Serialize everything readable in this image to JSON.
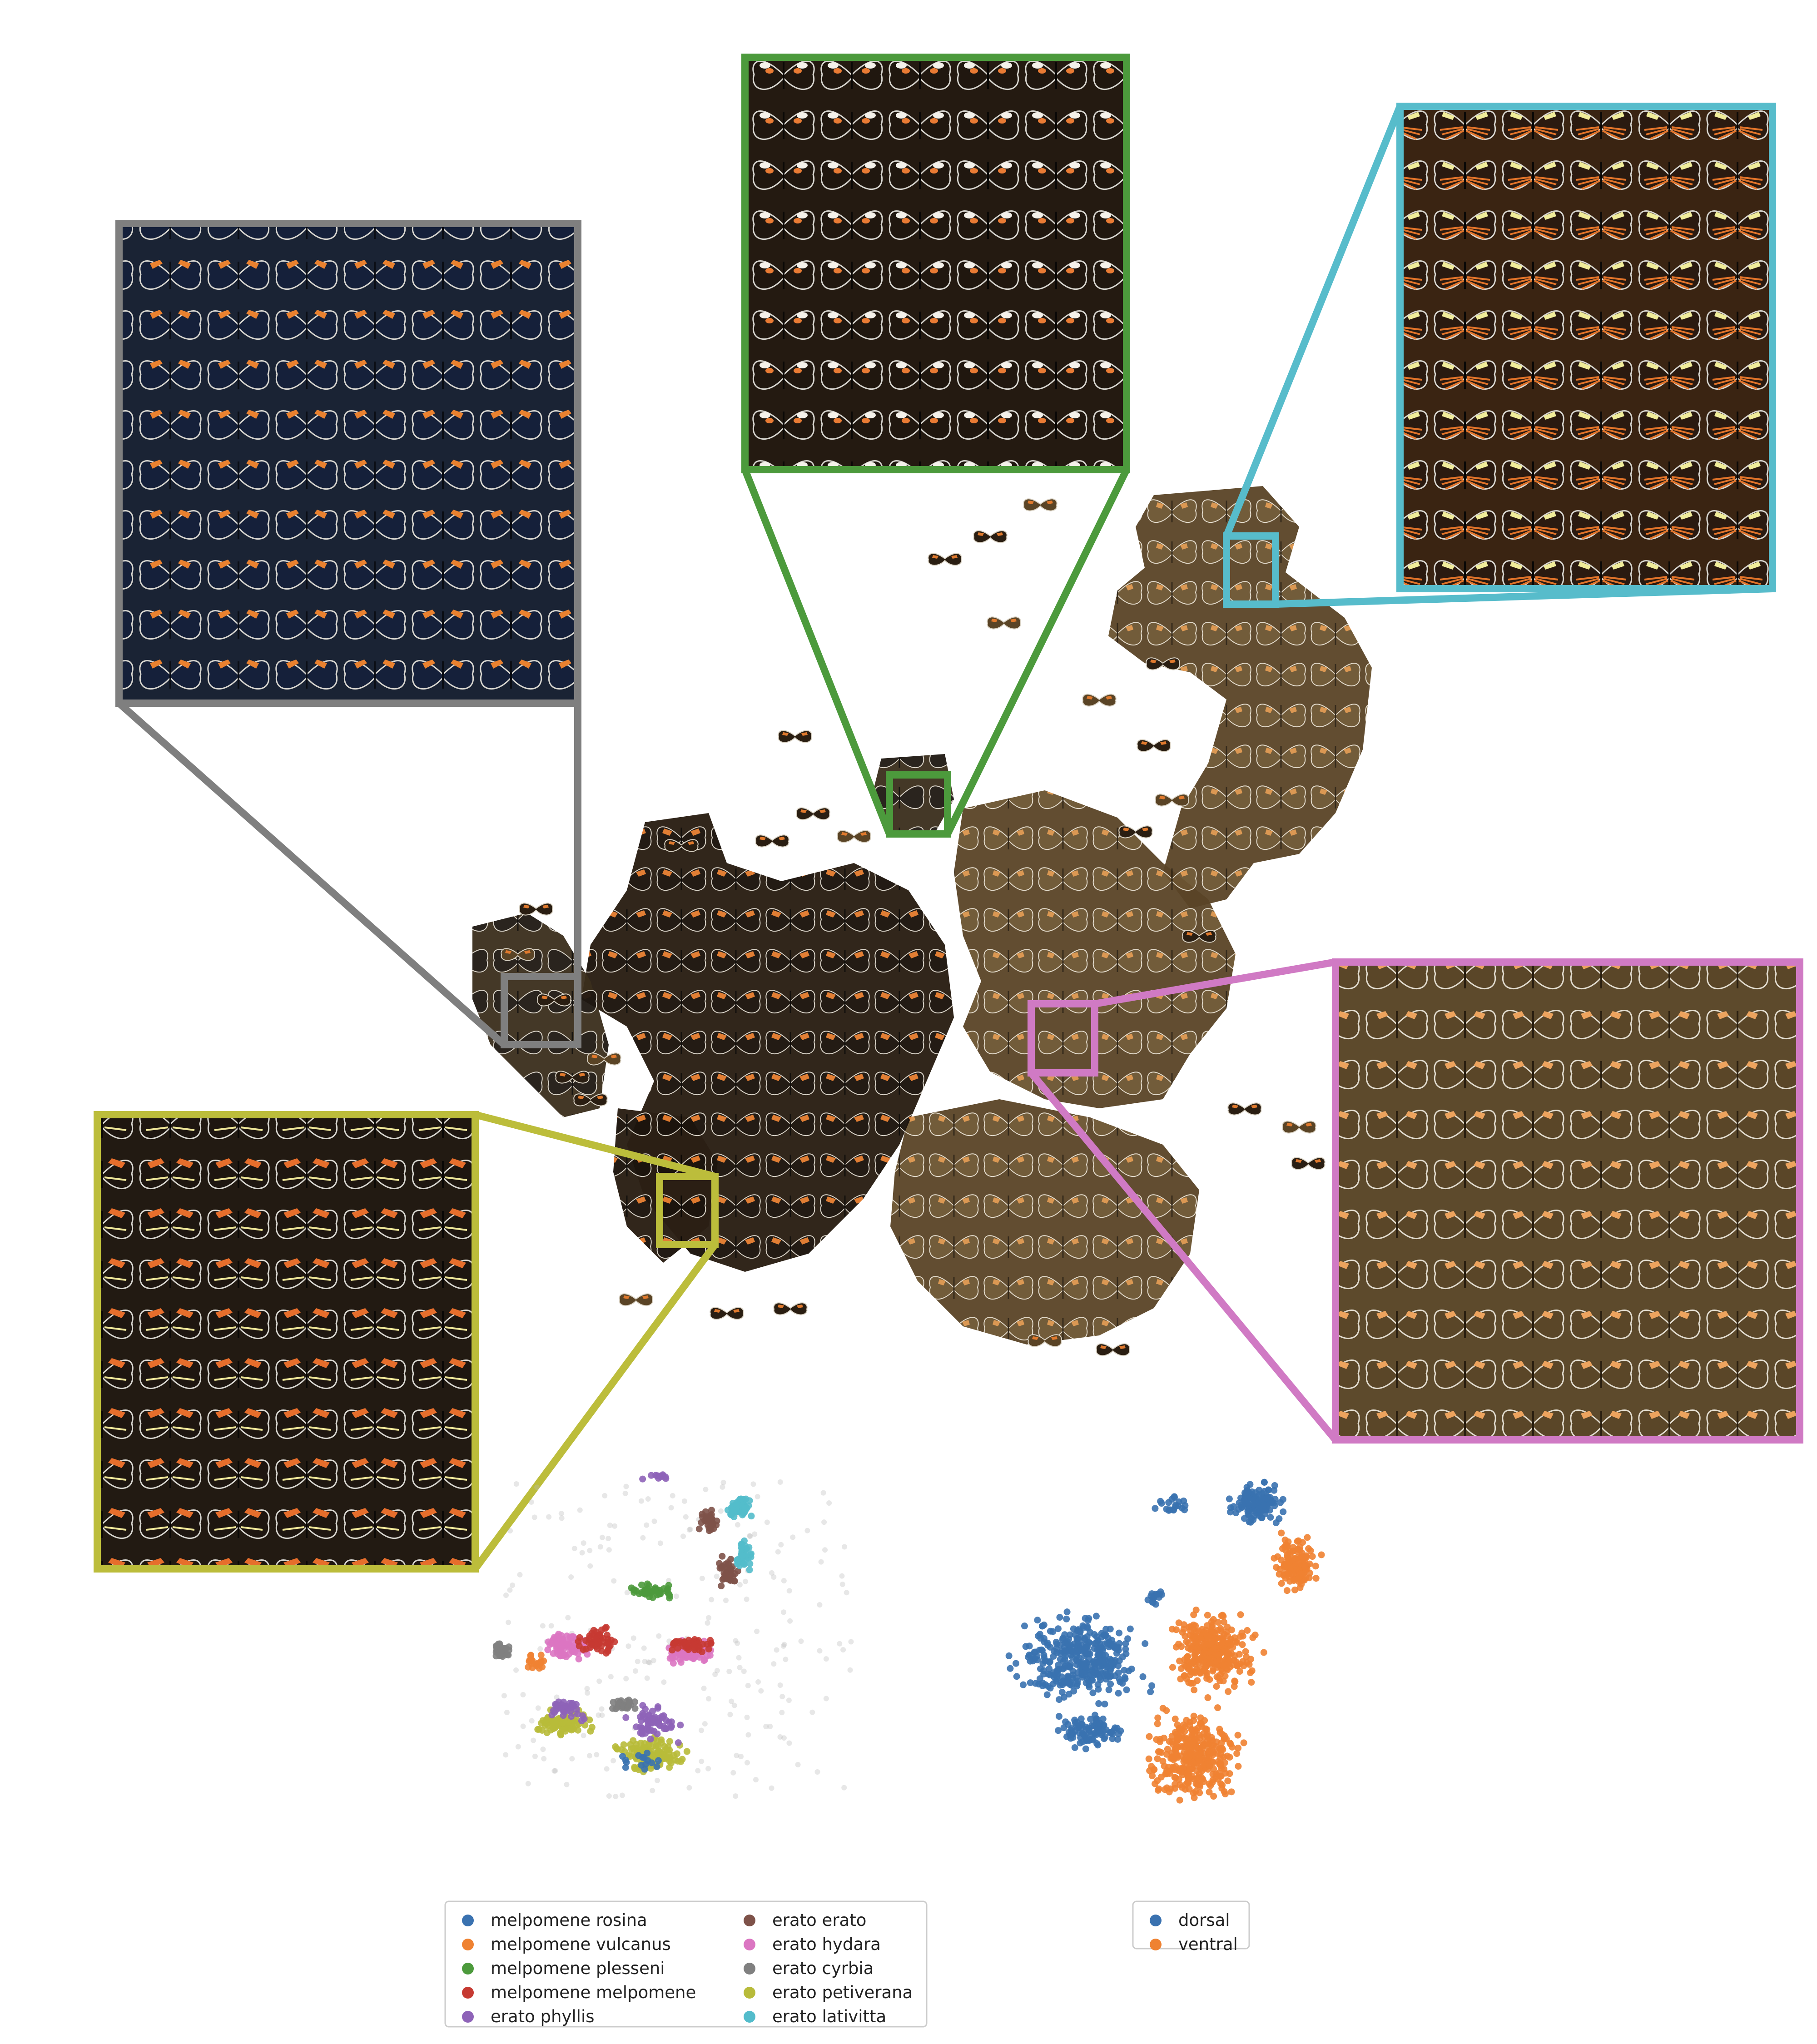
{
  "chart_data": [
    {
      "type": "scatter",
      "name": "tsne-image-montage",
      "description_visible": "t-SNE embedding rendered with butterfly wing thumbnails, with five magnified insets",
      "insets": [
        {
          "color": "#7f7f7f",
          "wing_pattern": "blue-black wings with orange forewing bands"
        },
        {
          "color": "#4c9a3c",
          "wing_pattern": "black wings with white and orange spots"
        },
        {
          "color": "#57bccb",
          "wing_pattern": "orange rayed wings with yellow forewing bands"
        },
        {
          "color": "#d07ac4",
          "wing_pattern": "brown ventral wings with orange forewing bands"
        },
        {
          "color": "#bcbd3b",
          "wing_pattern": "black wings with orange forewing band and yellow hindwing lines"
        }
      ]
    },
    {
      "type": "scatter",
      "name": "tsne-by-subspecies",
      "legend": {
        "placement": "bottom",
        "entries": [
          {
            "label": "melpomene rosina",
            "color": "#3a72b0"
          },
          {
            "label": "melpomene vulcanus",
            "color": "#ef8232"
          },
          {
            "label": "melpomene plesseni",
            "color": "#4c9a3c"
          },
          {
            "label": "melpomene melpomene",
            "color": "#c63a32"
          },
          {
            "label": "erato phyllis",
            "color": "#8e63b8"
          },
          {
            "label": "erato erato",
            "color": "#7e5249"
          },
          {
            "label": "erato hydara",
            "color": "#db76c2"
          },
          {
            "label": "erato cyrbia",
            "color": "#808080"
          },
          {
            "label": "erato petiverana",
            "color": "#b8bb3a"
          },
          {
            "label": "erato lativitta",
            "color": "#53bccb"
          }
        ]
      },
      "clusters": [
        {
          "series": "erato lativitta",
          "x": [
            62,
            70
          ],
          "y": [
            84,
            92
          ],
          "n": 60
        },
        {
          "series": "erato erato",
          "x": [
            55,
            62
          ],
          "y": [
            80,
            88
          ],
          "n": 40
        },
        {
          "series": "erato erato",
          "x": [
            60,
            66
          ],
          "y": [
            66,
            76
          ],
          "n": 35
        },
        {
          "series": "erato lativitta",
          "x": [
            64,
            70
          ],
          "y": [
            70,
            80
          ],
          "n": 40
        },
        {
          "series": "melpomene plesseni",
          "x": [
            36,
            52
          ],
          "y": [
            63,
            68
          ],
          "n": 45
        },
        {
          "series": "erato hydara",
          "x": [
            14,
            30
          ],
          "y": [
            46,
            55
          ],
          "n": 80
        },
        {
          "series": "melpomene melpomene",
          "x": [
            22,
            36
          ],
          "y": [
            47,
            57
          ],
          "n": 50
        },
        {
          "series": "erato hydara",
          "x": [
            44,
            62
          ],
          "y": [
            45,
            53
          ],
          "n": 90
        },
        {
          "series": "melpomene melpomene",
          "x": [
            46,
            62
          ],
          "y": [
            48,
            54
          ],
          "n": 40
        },
        {
          "series": "erato cyrbia",
          "x": [
            2,
            8
          ],
          "y": [
            47,
            52
          ],
          "n": 30
        },
        {
          "series": "erato cyrbia",
          "x": [
            32,
            40
          ],
          "y": [
            32,
            38
          ],
          "n": 30
        },
        {
          "series": "melpomene vulcanus",
          "x": [
            10,
            18
          ],
          "y": [
            43,
            50
          ],
          "n": 20
        },
        {
          "series": "erato petiverana",
          "x": [
            12,
            30
          ],
          "y": [
            26,
            34
          ],
          "n": 80
        },
        {
          "series": "erato phyllis",
          "x": [
            16,
            28
          ],
          "y": [
            30,
            38
          ],
          "n": 40
        },
        {
          "series": "erato petiverana",
          "x": [
            32,
            55
          ],
          "y": [
            15,
            28
          ],
          "n": 120
        },
        {
          "series": "erato phyllis",
          "x": [
            36,
            54
          ],
          "y": [
            24,
            36
          ],
          "n": 60
        },
        {
          "series": "melpomene rosina",
          "x": [
            34,
            48
          ],
          "y": [
            16,
            24
          ],
          "n": 15
        },
        {
          "series": "erato phyllis",
          "x": [
            40,
            50
          ],
          "y": [
            94,
            98
          ],
          "n": 12
        }
      ]
    },
    {
      "type": "scatter",
      "name": "tsne-by-side",
      "legend": {
        "placement": "bottom",
        "entries": [
          {
            "label": "dorsal",
            "color": "#3a72b0"
          },
          {
            "label": "ventral",
            "color": "#ef8232"
          }
        ]
      },
      "clusters": [
        {
          "series": "dorsal",
          "x": [
            58,
            76
          ],
          "y": [
            82,
            96
          ],
          "n": 130
        },
        {
          "series": "dorsal",
          "x": [
            40,
            54
          ],
          "y": [
            86,
            92
          ],
          "n": 20
        },
        {
          "series": "ventral",
          "x": [
            70,
            84
          ],
          "y": [
            64,
            82
          ],
          "n": 130
        },
        {
          "series": "dorsal",
          "x": [
            2,
            42
          ],
          "y": [
            32,
            62
          ],
          "n": 360
        },
        {
          "series": "dorsal",
          "x": [
            12,
            38
          ],
          "y": [
            22,
            34
          ],
          "n": 90
        },
        {
          "series": "ventral",
          "x": [
            42,
            70
          ],
          "y": [
            36,
            62
          ],
          "n": 300
        },
        {
          "series": "ventral",
          "x": [
            36,
            66
          ],
          "y": [
            6,
            36
          ],
          "n": 320
        },
        {
          "series": "dorsal",
          "x": [
            38,
            44
          ],
          "y": [
            61,
            66
          ],
          "n": 15
        }
      ]
    }
  ]
}
